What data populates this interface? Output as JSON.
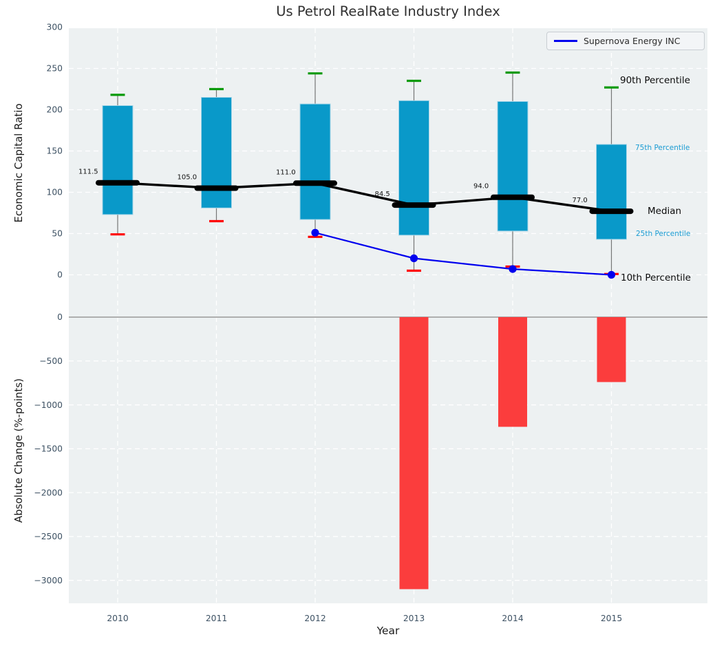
{
  "title": "Us Petrol RealRate Industry Index",
  "legend": {
    "label": "Supernova Energy INC"
  },
  "axes": {
    "top": {
      "ylabel": "Economic Capital Ratio",
      "yticks": [
        0,
        50,
        100,
        150,
        200,
        250,
        300
      ]
    },
    "bottom": {
      "ylabel": "Absolute Change (%-points)",
      "yticks": [
        0,
        -500,
        -1000,
        -1500,
        -2000,
        -2500,
        -3000
      ],
      "xlabel": "Year"
    }
  },
  "annotations": {
    "p90": "90th Percentile",
    "p75": "75th Percentile",
    "median": "Median",
    "p25": "25th Percentile",
    "p10": "10th Percentile"
  },
  "colors": {
    "panel_bg": "#edf1f2",
    "grid": "#ffffff",
    "bar": "#0999c9",
    "bar_edge": "#a5d5e8",
    "cap_90": "#0a9a0a",
    "cap_10": "#ff0000",
    "whisker": "#757575",
    "median": "#000000",
    "line": "#0000ee",
    "change_bar": "#fb3d3d",
    "zero_line": "#aeaeae",
    "tick_label": "#3d5163",
    "annotation_small": "#1b9cd3",
    "median_label": "#111111"
  },
  "chart_data": [
    {
      "type": "box",
      "title": "Us Petrol RealRate Industry Index",
      "categories": [
        "2010",
        "2011",
        "2012",
        "2013",
        "2014",
        "2015"
      ],
      "series": [
        {
          "name": "90th Percentile",
          "values": [
            218,
            225,
            244,
            235,
            245,
            227
          ]
        },
        {
          "name": "75th Percentile",
          "values": [
            205,
            215,
            207,
            211,
            210,
            158
          ]
        },
        {
          "name": "Median",
          "values": [
            111.5,
            105.0,
            111.0,
            84.5,
            94.0,
            77.0
          ]
        },
        {
          "name": "25th Percentile",
          "values": [
            73,
            81,
            67,
            48,
            53,
            43
          ]
        },
        {
          "name": "10th Percentile",
          "values": [
            49,
            65,
            46,
            5,
            10,
            1
          ]
        },
        {
          "name": "Supernova Energy INC",
          "values": [
            null,
            null,
            51,
            20,
            7,
            0
          ]
        }
      ],
      "ylabel": "Economic Capital Ratio",
      "ylim": [
        -28,
        300
      ],
      "grid": true,
      "legend_position": "upper right"
    },
    {
      "type": "bar",
      "categories": [
        "2010",
        "2011",
        "2012",
        "2013",
        "2014",
        "2015"
      ],
      "values": [
        null,
        null,
        null,
        -3100,
        -1250,
        -740
      ],
      "xlabel": "Year",
      "ylabel": "Absolute Change (%-points)",
      "ylim": [
        -3260,
        220
      ],
      "grid": true
    }
  ]
}
